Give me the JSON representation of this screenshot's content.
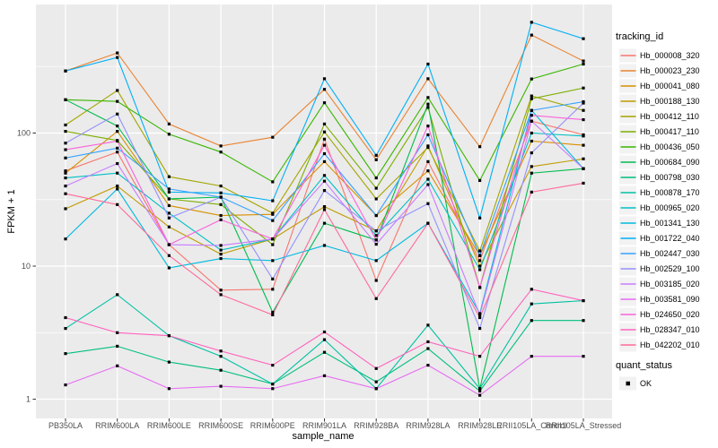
{
  "chart_data": {
    "type": "line",
    "title": "",
    "xlabel": "sample_name",
    "ylabel": "FPKM + 1",
    "y_scale": "log10",
    "ylim": [
      0.72,
      925
    ],
    "y_ticks": [
      1,
      10,
      100
    ],
    "y_minor_ticks": [
      3.162,
      31.62,
      316.2
    ],
    "grid": "on",
    "panel_bg": "#EBEBEB",
    "grid_color": "#FFFFFF",
    "axis_text_color": "#4D4D4D",
    "point_shape": "filled-square",
    "point_color": "#000000",
    "categories": [
      "PB350LA",
      "RRIM600LA",
      "RRIM600LE",
      "RRIM600SE",
      "RRIM600PE",
      "RRIM901LA",
      "RRIM928BA",
      "RRIM928LA",
      "RRIM928LE",
      "RRII105LA_Control",
      "RRII105LA_Stressed"
    ],
    "series": [
      {
        "name": "Hb_000008_320",
        "color": "#F8766D",
        "values": [
          52,
          72,
          14.5,
          6.6,
          6.7,
          90,
          7.8,
          61,
          11,
          123,
          97
        ]
      },
      {
        "name": "Hb_000023_230",
        "color": "#EA8331",
        "values": [
          293,
          400,
          117,
          80,
          93,
          213,
          63,
          256,
          79,
          545,
          348
        ]
      },
      {
        "name": "Hb_000041_080",
        "color": "#D89000",
        "values": [
          50,
          103,
          28.5,
          24,
          24.5,
          61,
          24,
          52,
          12,
          87,
          81
        ]
      },
      {
        "name": "Hb_000188_130",
        "color": "#C09B00",
        "values": [
          27,
          40,
          19.7,
          12.3,
          16,
          28,
          18.4,
          80,
          10,
          56,
          64
        ]
      },
      {
        "name": "Hb_000412_110",
        "color": "#A3A500",
        "values": [
          115,
          209,
          47,
          40,
          25,
          102,
          32,
          78,
          13,
          190,
          148
        ]
      },
      {
        "name": "Hb_000417_110",
        "color": "#7CAE00",
        "values": [
          103,
          88,
          32,
          29,
          14.5,
          117,
          38.5,
          156,
          6.9,
          181,
          218
        ]
      },
      {
        "name": "Hb_000436_050",
        "color": "#39B600",
        "values": [
          178,
          173,
          98,
          72,
          43,
          169,
          46,
          185,
          44,
          255,
          330
        ]
      },
      {
        "name": "Hb_000684_090",
        "color": "#00BB4E",
        "values": [
          178,
          113,
          32,
          33,
          4.5,
          21,
          15.7,
          165,
          1.2,
          50,
          54
        ]
      },
      {
        "name": "Hb_000798_030",
        "color": "#00BF7D",
        "values": [
          2.2,
          2.5,
          1.9,
          1.65,
          1.3,
          2.25,
          1.35,
          2.4,
          1.15,
          3.9,
          3.9
        ]
      },
      {
        "name": "Hb_000878_170",
        "color": "#00C1A3",
        "values": [
          3.4,
          6.1,
          3.0,
          2.1,
          1.3,
          2.8,
          1.2,
          3.6,
          1.2,
          5.2,
          5.5
        ]
      },
      {
        "name": "Hb_000965_020",
        "color": "#00BFC4",
        "values": [
          46,
          50,
          25,
          13.2,
          16,
          48,
          17,
          45,
          9.4,
          100,
          95
        ]
      },
      {
        "name": "Hb_001341_130",
        "color": "#00BADE",
        "values": [
          16,
          38,
          9.7,
          11.4,
          11,
          14.3,
          11,
          21,
          4.4,
          148,
          54
        ]
      },
      {
        "name": "Hb_001722_040",
        "color": "#00B0F6",
        "values": [
          293,
          370,
          36,
          35.5,
          31,
          256,
          68,
          330,
          23,
          680,
          512
        ]
      },
      {
        "name": "Hb_002447_030",
        "color": "#35A2FF",
        "values": [
          65,
          77,
          38,
          33,
          22,
          70,
          24,
          97,
          12,
          148,
          172
        ]
      },
      {
        "name": "Hb_002529_100",
        "color": "#9590FF",
        "values": [
          84,
          139,
          23,
          33,
          8,
          37,
          18.4,
          29.5,
          3.4,
          71,
          168
        ]
      },
      {
        "name": "Hb_003185_020",
        "color": "#C77CFF",
        "values": [
          40,
          59,
          14.5,
          14.3,
          16,
          43.5,
          14.6,
          41,
          4.3,
          123,
          54
        ]
      },
      {
        "name": "Hb_003581_090",
        "color": "#E76BF3",
        "values": [
          1.28,
          1.78,
          1.2,
          1.25,
          1.2,
          1.5,
          1.2,
          1.8,
          1.07,
          2.1,
          2.1
        ]
      },
      {
        "name": "Hb_024650_020",
        "color": "#FA62DB",
        "values": [
          75,
          87,
          14.5,
          22.3,
          16,
          81,
          15.7,
          113,
          6.9,
          136,
          126
        ]
      },
      {
        "name": "Hb_028347_010",
        "color": "#FF62BC",
        "values": [
          4.1,
          3.16,
          3.0,
          2.3,
          1.8,
          3.2,
          1.7,
          2.7,
          2.1,
          6.7,
          5.5
        ]
      },
      {
        "name": "Hb_042202_010",
        "color": "#FF6A98",
        "values": [
          35,
          29,
          12,
          6.1,
          4.3,
          26.6,
          5.7,
          21,
          4.1,
          36,
          42
        ]
      }
    ],
    "legend": {
      "position": "right",
      "title": "tracking_id",
      "key_bg": "#F2F2F2",
      "shape_legend": {
        "title": "quant_status",
        "items": [
          {
            "label": "OK",
            "shape": "filled-square",
            "color": "#000000"
          }
        ]
      }
    }
  }
}
